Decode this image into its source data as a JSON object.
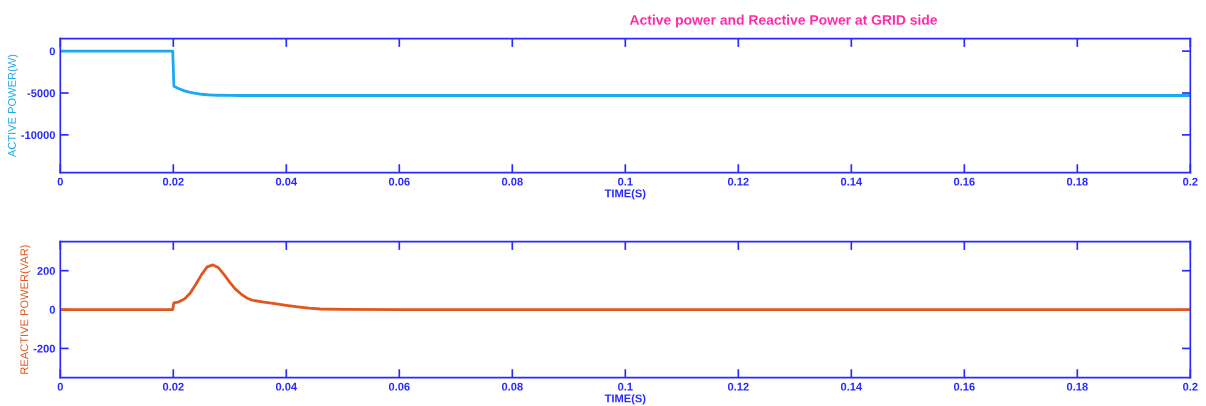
{
  "chart_data": [
    {
      "type": "line",
      "title": "Active power and Reactive Power at GRID side",
      "xlabel": "TIME(S)",
      "ylabel": "ACTIVE POWER(W)",
      "x": [
        0,
        0.005,
        0.01,
        0.015,
        0.0199,
        0.02,
        0.0201,
        0.021,
        0.022,
        0.023,
        0.024,
        0.025,
        0.026,
        0.027,
        0.028,
        0.03,
        0.032,
        0.035,
        0.04,
        0.06,
        0.1,
        0.15,
        0.2
      ],
      "series": [
        {
          "color": "#1ea8f0",
          "values": [
            0,
            0,
            0,
            0,
            0,
            -2000,
            -4200,
            -4500,
            -4750,
            -4920,
            -5050,
            -5150,
            -5210,
            -5250,
            -5270,
            -5290,
            -5300,
            -5300,
            -5300,
            -5300,
            -5300,
            -5300,
            -5300
          ]
        }
      ],
      "xlim": [
        0,
        0.2
      ],
      "xticks": [
        0,
        0.02,
        0.04,
        0.06,
        0.08,
        0.1,
        0.12,
        0.14,
        0.16,
        0.18,
        0.2
      ],
      "ylim": [
        -14500,
        1500
      ],
      "yticks": [
        -10000,
        -5000,
        0
      ]
    },
    {
      "type": "line",
      "xlabel": "TIME(S)",
      "ylabel": "REACTIVE POWER(VAR)",
      "x": [
        0,
        0.01,
        0.0199,
        0.0201,
        0.021,
        0.022,
        0.023,
        0.024,
        0.025,
        0.026,
        0.027,
        0.028,
        0.029,
        0.03,
        0.031,
        0.032,
        0.033,
        0.034,
        0.036,
        0.038,
        0.04,
        0.042,
        0.044,
        0.046,
        0.05,
        0.06,
        0.1,
        0.15,
        0.2
      ],
      "series": [
        {
          "color": "#e0561e",
          "values": [
            0,
            0,
            0,
            35,
            40,
            55,
            85,
            130,
            180,
            220,
            230,
            215,
            180,
            140,
            105,
            80,
            60,
            48,
            38,
            30,
            22,
            14,
            7,
            3,
            1,
            0,
            0,
            0,
            0
          ]
        }
      ],
      "xlim": [
        0,
        0.2
      ],
      "xticks": [
        0,
        0.02,
        0.04,
        0.06,
        0.08,
        0.1,
        0.12,
        0.14,
        0.16,
        0.18,
        0.2
      ],
      "ylim": [
        -350,
        350
      ],
      "yticks": [
        -200,
        0,
        200
      ]
    }
  ]
}
